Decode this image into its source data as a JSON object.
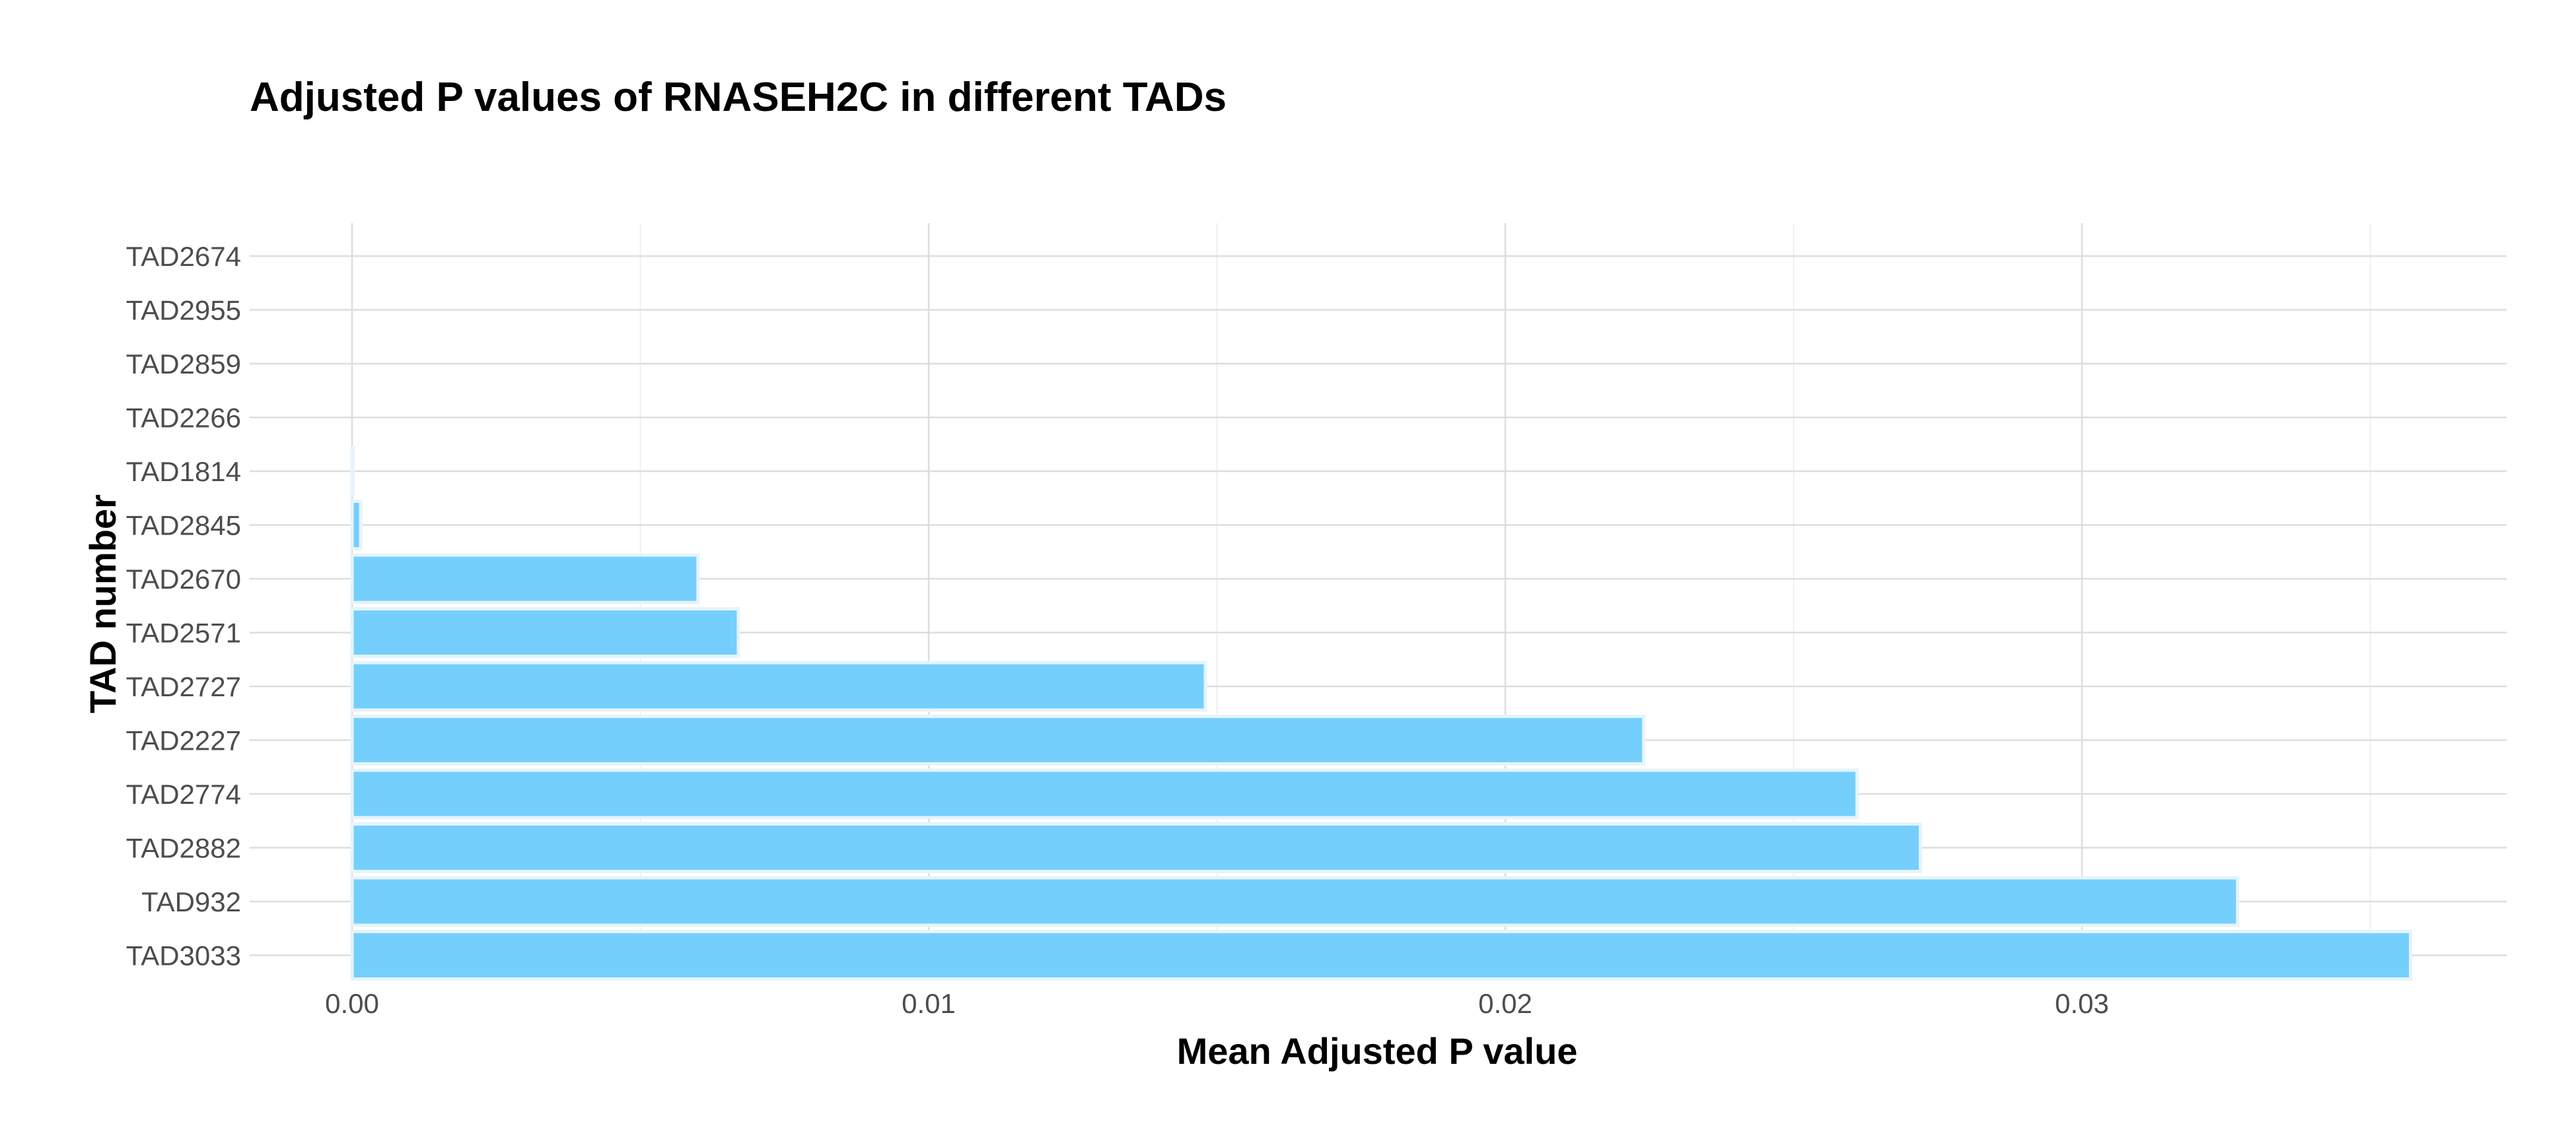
{
  "colors": {
    "bar_fill": "#75cffc",
    "bar_outline": "#e6f4fb",
    "grid_major": "#dddddd",
    "grid_minor": "#ebebeb",
    "text": "#000000",
    "tick_text": "#4d4d4d"
  },
  "chart_data": {
    "type": "bar",
    "orientation": "horizontal",
    "title": "Adjusted P values of RNASEH2C in different TADs",
    "xlabel": "Mean Adjusted P value",
    "ylabel": "TAD number",
    "xlim": [
      0,
      0.0373
    ],
    "x_ticks": [
      0.0,
      0.01,
      0.02,
      0.03
    ],
    "x_tick_labels": [
      "0.00",
      "0.01",
      "0.02",
      "0.03"
    ],
    "grid": true,
    "legend": "none",
    "categories": [
      "TAD2674",
      "TAD2955",
      "TAD2859",
      "TAD2266",
      "TAD1814",
      "TAD2845",
      "TAD2670",
      "TAD2571",
      "TAD2727",
      "TAD2227",
      "TAD2774",
      "TAD2882",
      "TAD932",
      "TAD3033"
    ],
    "values": [
      0.0,
      0.0,
      0.0,
      0.0,
      2e-05,
      0.00015,
      0.006,
      0.0067,
      0.0148,
      0.0224,
      0.0261,
      0.0272,
      0.0327,
      0.0357
    ]
  }
}
